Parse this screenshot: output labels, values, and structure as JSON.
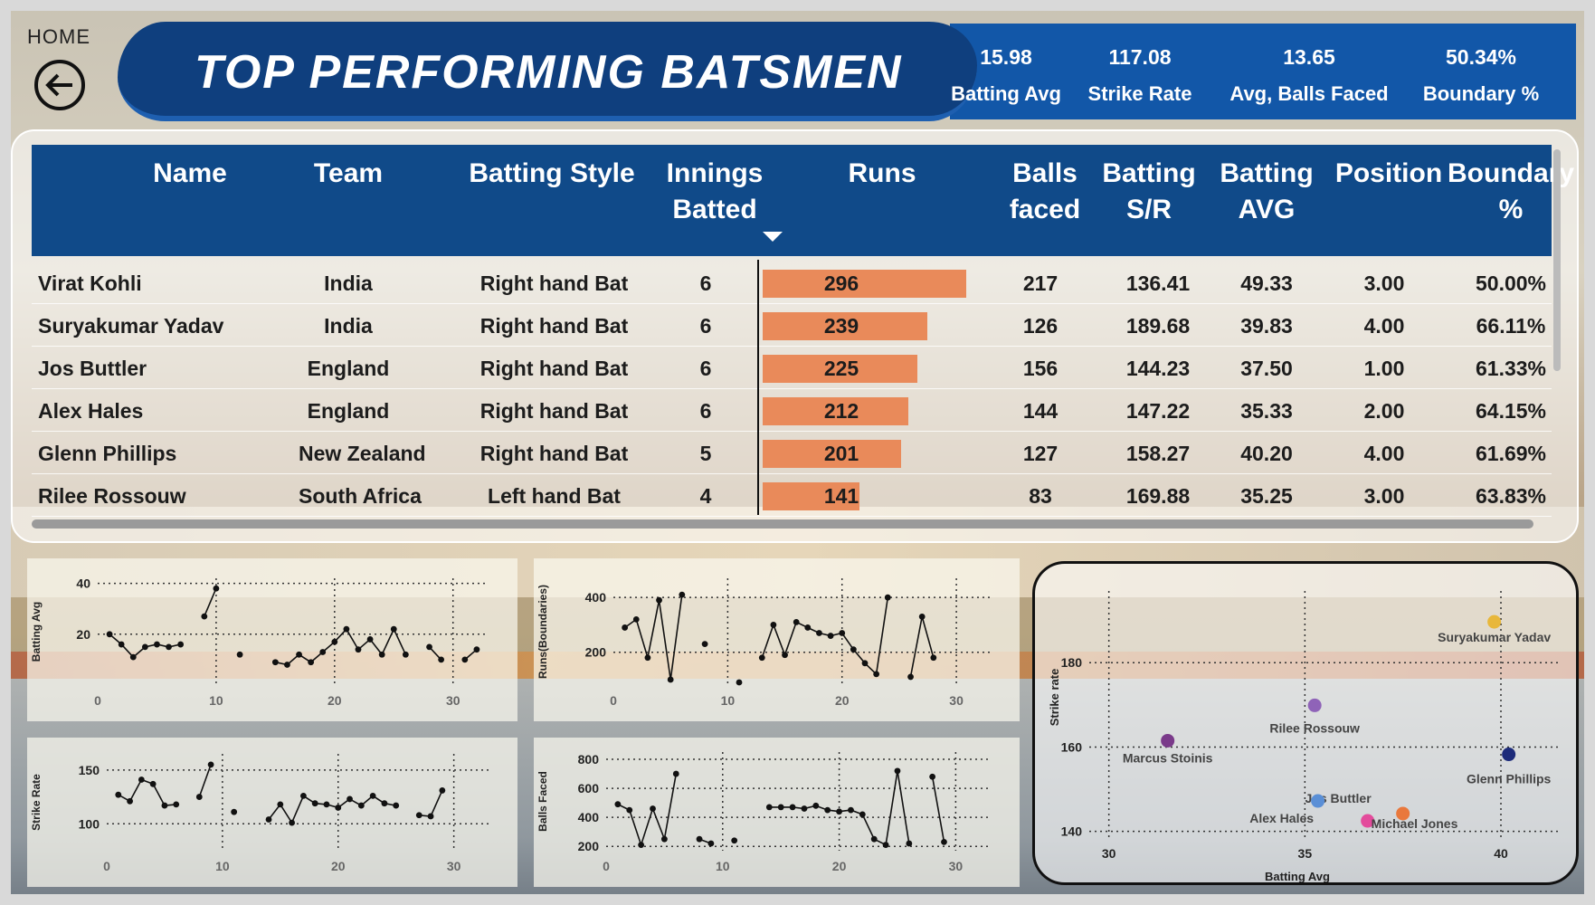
{
  "nav": {
    "home_label": "HOME"
  },
  "header": {
    "title": "TOP PERFORMING BATSMEN"
  },
  "kpis": [
    {
      "value": "15.98",
      "label": "Batting Avg"
    },
    {
      "value": "117.08",
      "label": "Strike Rate"
    },
    {
      "value": "13.65",
      "label": "Avg, Balls Faced"
    },
    {
      "value": "50.34%",
      "label": "Boundary %"
    }
  ],
  "table": {
    "columns": [
      "Name",
      "Team",
      "Batting Style",
      "Innings Batted",
      "Runs",
      "Balls faced",
      "Batting S/R",
      "Batting AVG",
      "Position",
      "Boundary %"
    ],
    "header_lines": [
      [
        "Name"
      ],
      [
        "Team"
      ],
      [
        "Batting Style"
      ],
      [
        "Innings",
        "Batted"
      ],
      [
        "Runs"
      ],
      [
        "Balls",
        "faced"
      ],
      [
        "Batting",
        "S/R"
      ],
      [
        "Batting",
        "AVG"
      ],
      [
        "Position"
      ],
      [
        "Boundary",
        "%"
      ]
    ],
    "rows": [
      [
        "Virat Kohli",
        "India",
        "Right hand Bat",
        "6",
        "296",
        "217",
        "136.41",
        "49.33",
        "3.00",
        "50.00%"
      ],
      [
        "Suryakumar Yadav",
        "India",
        "Right hand Bat",
        "6",
        "239",
        "126",
        "189.68",
        "39.83",
        "4.00",
        "66.11%"
      ],
      [
        "Jos Buttler",
        "England",
        "Right hand Bat",
        "6",
        "225",
        "156",
        "144.23",
        "37.50",
        "1.00",
        "61.33%"
      ],
      [
        "Alex Hales",
        "England",
        "Right hand Bat",
        "6",
        "212",
        "144",
        "147.22",
        "35.33",
        "2.00",
        "64.15%"
      ],
      [
        "Glenn Phillips",
        "New Zealand",
        "Right hand Bat",
        "5",
        "201",
        "127",
        "158.27",
        "40.20",
        "4.00",
        "61.69%"
      ],
      [
        "Rilee Rossouw",
        "South Africa",
        "Left hand Bat",
        "4",
        "141",
        "83",
        "169.88",
        "35.25",
        "3.00",
        "63.83%"
      ]
    ],
    "runs_bar_color": "#e98a5a",
    "header_color": "#104a89"
  },
  "chart_data": [
    {
      "type": "line",
      "ylabel": "Batting Avg",
      "xlabel": "",
      "xticks": [
        "0",
        "10",
        "20",
        "30"
      ],
      "yticks": [
        "20",
        "40"
      ],
      "xlim": [
        0,
        33
      ],
      "ylim": [
        0,
        42
      ],
      "x": [
        1,
        2,
        3,
        4,
        5,
        6,
        7,
        8,
        9,
        10,
        11,
        12,
        13,
        14,
        15,
        16,
        17,
        18,
        19,
        20,
        21,
        22,
        23,
        24,
        25,
        26,
        27,
        28,
        29,
        30,
        31,
        32
      ],
      "y": [
        20,
        16,
        11,
        15,
        16,
        15,
        16,
        null,
        27,
        38,
        null,
        12,
        null,
        null,
        9,
        8,
        12,
        9,
        13,
        17,
        22,
        14,
        18,
        12,
        22,
        12,
        null,
        15,
        10,
        null,
        10,
        14
      ]
    },
    {
      "type": "line",
      "ylabel": "Runs(Boundaries)",
      "xlabel": "",
      "xticks": [
        "0",
        "10",
        "20",
        "30"
      ],
      "yticks": [
        "200",
        "400"
      ],
      "xlim": [
        0,
        33
      ],
      "ylim": [
        80,
        470
      ],
      "x": [
        1,
        2,
        3,
        4,
        5,
        6,
        7,
        8,
        9,
        10,
        11,
        12,
        13,
        14,
        15,
        16,
        17,
        18,
        19,
        20,
        21,
        22,
        23,
        24,
        25,
        26,
        27,
        28,
        29,
        30,
        31
      ],
      "y": [
        290,
        320,
        180,
        390,
        100,
        410,
        null,
        230,
        null,
        null,
        90,
        null,
        180,
        300,
        190,
        310,
        290,
        270,
        260,
        270,
        210,
        160,
        120,
        400,
        null,
        110,
        330,
        180,
        null,
        null,
        null
      ]
    },
    {
      "type": "line",
      "ylabel": "Strike Rate",
      "xlabel": "",
      "xticks": [
        "0",
        "10",
        "20",
        "30"
      ],
      "yticks": [
        "100",
        "150"
      ],
      "xlim": [
        0,
        33
      ],
      "ylim": [
        75,
        165
      ],
      "x": [
        1,
        2,
        3,
        4,
        5,
        6,
        7,
        8,
        9,
        10,
        11,
        12,
        13,
        14,
        15,
        16,
        17,
        18,
        19,
        20,
        21,
        22,
        23,
        24,
        25,
        26,
        27,
        28,
        29,
        30,
        31
      ],
      "y": [
        127,
        121,
        141,
        137,
        117,
        118,
        null,
        125,
        155,
        null,
        111,
        null,
        null,
        104,
        118,
        101,
        126,
        119,
        118,
        115,
        123,
        117,
        126,
        119,
        117,
        null,
        108,
        107,
        131,
        null,
        null
      ]
    },
    {
      "type": "line",
      "ylabel": "Balls Faced",
      "xlabel": "",
      "xticks": [
        "0",
        "10",
        "20",
        "30"
      ],
      "yticks": [
        "200",
        "400",
        "600",
        "800"
      ],
      "xlim": [
        0,
        33
      ],
      "ylim": [
        170,
        850
      ],
      "x": [
        1,
        2,
        3,
        4,
        5,
        6,
        7,
        8,
        9,
        10,
        11,
        12,
        13,
        14,
        15,
        16,
        17,
        18,
        19,
        20,
        21,
        22,
        23,
        24,
        25,
        26,
        27,
        28,
        29,
        30,
        31
      ],
      "y": [
        490,
        450,
        210,
        460,
        250,
        700,
        null,
        250,
        220,
        null,
        240,
        null,
        null,
        470,
        470,
        470,
        460,
        480,
        450,
        440,
        450,
        420,
        250,
        210,
        720,
        220,
        null,
        680,
        230,
        null,
        null
      ]
    },
    {
      "type": "scatter",
      "xlabel": "Batting Avg",
      "ylabel": "Strike rate",
      "xticks": [
        "30",
        "35",
        "40"
      ],
      "yticks": [
        "140",
        "160",
        "180"
      ],
      "xlim": [
        29.5,
        41.5
      ],
      "ylim": [
        138,
        197
      ],
      "points": [
        {
          "name": "Suryakumar Yadav",
          "x": 39.83,
          "y": 189.68,
          "color": "#e8b73a"
        },
        {
          "name": "Rilee Rossouw",
          "x": 35.25,
          "y": 169.88,
          "color": "#8f63b8"
        },
        {
          "name": "Marcus Stoinis",
          "x": 31.5,
          "y": 161.5,
          "color": "#7a3a8a"
        },
        {
          "name": "Glenn Phillips",
          "x": 40.2,
          "y": 158.27,
          "color": "#1d2b7a"
        },
        {
          "name": "Jos Buttler",
          "x": 37.5,
          "y": 144.23,
          "color": "#e9783c"
        },
        {
          "name": "Alex Hales",
          "x": 35.33,
          "y": 147.22,
          "color": "#5a8fd6"
        },
        {
          "name": "Michael Jones",
          "x": 36.6,
          "y": 142.5,
          "color": "#e34b9c"
        }
      ],
      "label_names": [
        "Suryakumar Yadav",
        "Rilee Rossouw",
        "Marcus Stoinis",
        "Glenn Phillips",
        "Jos Buttler",
        "Alex Hales",
        "Michael Jones"
      ]
    }
  ]
}
